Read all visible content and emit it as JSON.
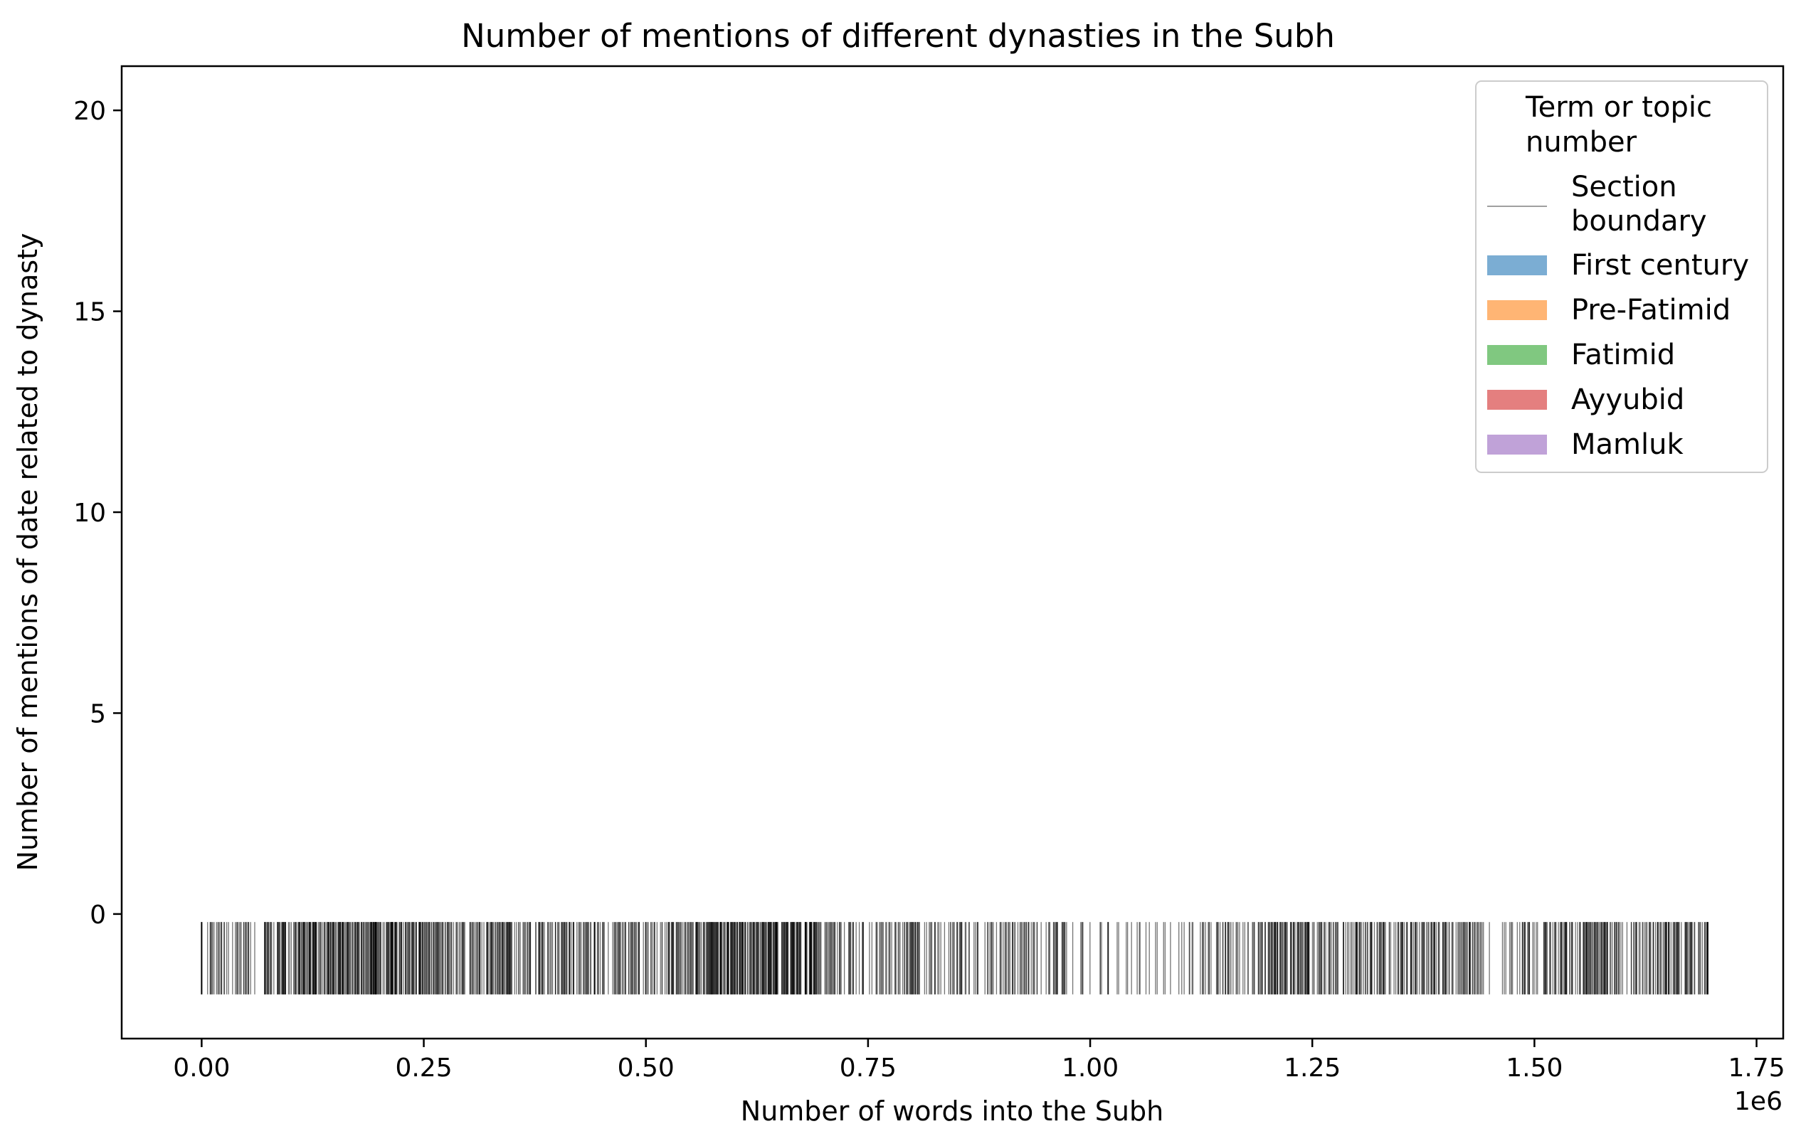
{
  "chart_data": {
    "type": "bar",
    "title": "Number of mentions of different dynasties in the Subh",
    "xlabel": "Number of words into the Subh",
    "ylabel": "Number of mentions of date related to dynasty",
    "x_offset_label": "1e6",
    "xlim": [
      -0.09,
      1.78
    ],
    "ylim": [
      -3.1,
      21.1
    ],
    "x_ticks": [
      0.0,
      0.25,
      0.5,
      0.75,
      1.0,
      1.25,
      1.5,
      1.75
    ],
    "x_tick_labels": [
      "0.00",
      "0.25",
      "0.50",
      "0.75",
      "1.00",
      "1.25",
      "1.50",
      "1.75"
    ],
    "y_ticks": [
      0,
      5,
      10,
      15,
      20
    ],
    "y_tick_labels": [
      "0",
      "5",
      "10",
      "15",
      "20"
    ],
    "grid": false,
    "legend": {
      "title": "Term or topic number",
      "placement": "top-right",
      "entries": [
        {
          "label": "Section boundary",
          "type": "line",
          "color": "#000000"
        },
        {
          "label": "First century",
          "type": "patch",
          "color": "#7badd3"
        },
        {
          "label": "Pre-Fatimid",
          "type": "patch",
          "color": "#ffb574"
        },
        {
          "label": "Fatimid",
          "type": "patch",
          "color": "#80c880"
        },
        {
          "label": "Ayyubid",
          "type": "patch",
          "color": "#e47f7f"
        },
        {
          "label": "Mamluk",
          "type": "patch",
          "color": "#c0a2d8"
        }
      ]
    },
    "series": [
      {
        "name": "First century",
        "values": []
      },
      {
        "name": "Pre-Fatimid",
        "values": []
      },
      {
        "name": "Fatimid",
        "values": []
      },
      {
        "name": "Ayyubid",
        "values": []
      },
      {
        "name": "Mamluk",
        "values": []
      }
    ],
    "section_boundaries": {
      "y_range": [
        -2.0,
        -0.2
      ],
      "x_extent": [
        0.0,
        1.695
      ],
      "density_profile": [
        {
          "from": 0.0,
          "to": 0.06,
          "per_unit": 600
        },
        {
          "from": 0.07,
          "to": 0.25,
          "per_unit": 1600
        },
        {
          "from": 0.25,
          "to": 0.45,
          "per_unit": 1000
        },
        {
          "from": 0.45,
          "to": 0.57,
          "per_unit": 900
        },
        {
          "from": 0.57,
          "to": 0.7,
          "per_unit": 1800
        },
        {
          "from": 0.7,
          "to": 0.86,
          "per_unit": 700
        },
        {
          "from": 0.86,
          "to": 0.98,
          "per_unit": 600
        },
        {
          "from": 0.98,
          "to": 1.12,
          "per_unit": 250
        },
        {
          "from": 1.12,
          "to": 1.2,
          "per_unit": 600
        },
        {
          "from": 1.2,
          "to": 1.44,
          "per_unit": 1000
        },
        {
          "from": 1.44,
          "to": 1.51,
          "per_unit": 400
        },
        {
          "from": 1.51,
          "to": 1.695,
          "per_unit": 1000
        }
      ]
    }
  }
}
